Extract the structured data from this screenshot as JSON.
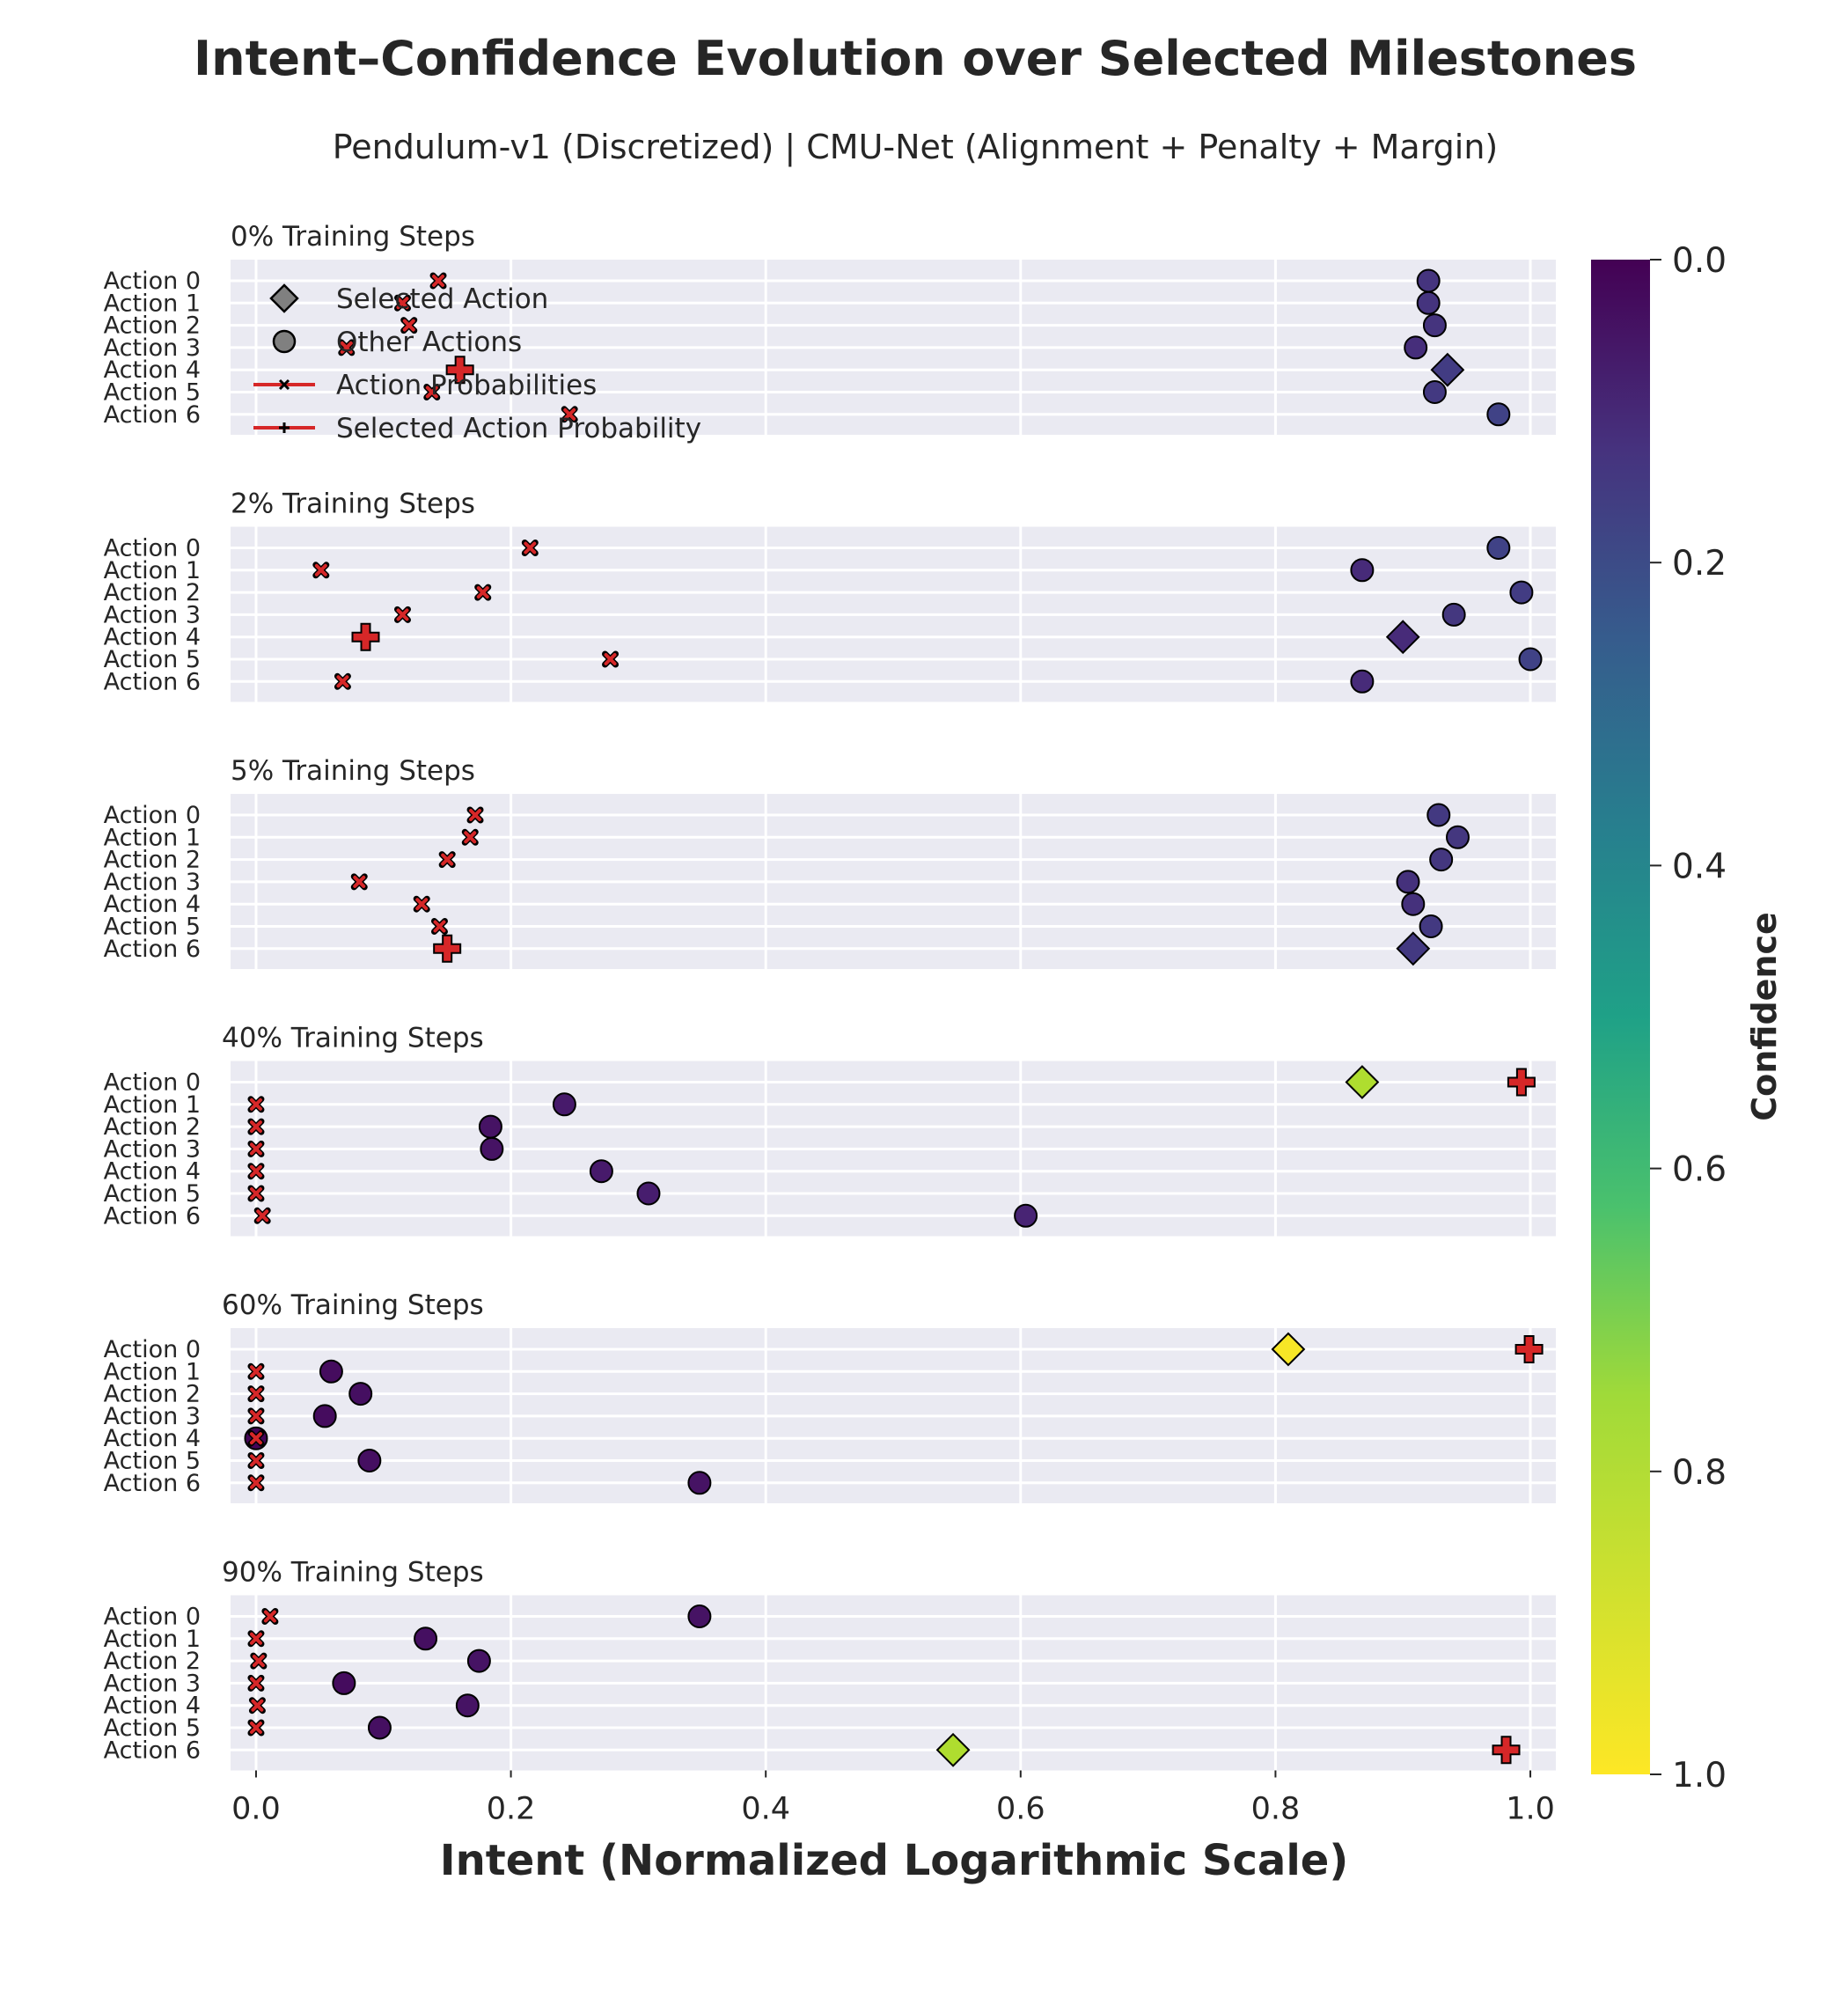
{
  "chart_data": {
    "type": "scatter",
    "title": "Intent–Confidence Evolution over Selected Milestones",
    "subtitle": "Pendulum-v1 (Discretized) | CMU-Net (Alignment + Penalty + Margin)",
    "xlabel": "Intent (Normalized Logarithmic Scale)",
    "xlim": [
      -0.02,
      1.02
    ],
    "xticks": [
      "0.0",
      "0.2",
      "0.4",
      "0.6",
      "0.8",
      "1.0"
    ],
    "xtick_values": [
      0.0,
      0.2,
      0.4,
      0.6,
      0.8,
      1.0
    ],
    "actions": [
      "Action 0",
      "Action 1",
      "Action 2",
      "Action 3",
      "Action 4",
      "Action 5",
      "Action 6"
    ],
    "colorbar": {
      "label": "Confidence",
      "colormap": "viridis (reversed)",
      "range": [
        0.0,
        1.0
      ],
      "ticks": [
        "0.0",
        "0.2",
        "0.4",
        "0.6",
        "0.8",
        "1.0"
      ],
      "tick_values": [
        0.0,
        0.2,
        0.4,
        0.6,
        0.8,
        1.0
      ]
    },
    "legend": {
      "placement": "top-left of first panel",
      "entries": [
        "Selected Action",
        "Other Actions",
        "Action Probabilities",
        "Selected Action Probability"
      ]
    },
    "grid": true,
    "panels": [
      {
        "title": "0% Training Steps",
        "selected": 4,
        "intent": [
          0.92,
          0.92,
          0.925,
          0.91,
          0.935,
          0.925,
          0.975
        ],
        "confidence": [
          0.15,
          0.15,
          0.15,
          0.13,
          0.18,
          0.17,
          0.2
        ],
        "probability": [
          0.143,
          0.115,
          0.12,
          0.071,
          0.16,
          0.138,
          0.246
        ]
      },
      {
        "title": "2% Training Steps",
        "selected": 4,
        "intent": [
          0.975,
          0.868,
          0.993,
          0.94,
          0.9,
          1.0,
          0.868
        ],
        "confidence": [
          0.2,
          0.12,
          0.18,
          0.16,
          0.12,
          0.2,
          0.12
        ],
        "probability": [
          0.215,
          0.051,
          0.178,
          0.115,
          0.086,
          0.278,
          0.068
        ]
      },
      {
        "title": "5% Training Steps",
        "selected": 6,
        "intent": [
          0.928,
          0.943,
          0.93,
          0.904,
          0.908,
          0.922,
          0.908
        ],
        "confidence": [
          0.17,
          0.16,
          0.16,
          0.14,
          0.14,
          0.17,
          0.17
        ],
        "probability": [
          0.172,
          0.168,
          0.15,
          0.081,
          0.13,
          0.144,
          0.15
        ]
      },
      {
        "title": "40% Training Steps",
        "selected": 0,
        "intent": [
          0.868,
          0.242,
          0.184,
          0.185,
          0.271,
          0.308,
          0.604
        ],
        "confidence": [
          0.88,
          0.07,
          0.05,
          0.05,
          0.07,
          0.08,
          0.1
        ],
        "probability": [
          0.993,
          0.0,
          0.0,
          0.0,
          0.0,
          0.0,
          0.005
        ]
      },
      {
        "title": "60% Training Steps",
        "selected": 0,
        "intent": [
          0.81,
          0.059,
          0.082,
          0.054,
          0.0,
          0.089,
          0.348
        ],
        "confidence": [
          0.99,
          0.03,
          0.04,
          0.03,
          0.01,
          0.04,
          0.05
        ],
        "probability": [
          0.999,
          0.0,
          0.0,
          0.0,
          0.0,
          0.0,
          0.0
        ]
      },
      {
        "title": "90% Training Steps",
        "selected": 6,
        "intent": [
          0.348,
          0.133,
          0.175,
          0.069,
          0.166,
          0.097,
          0.547
        ],
        "confidence": [
          0.05,
          0.04,
          0.05,
          0.03,
          0.05,
          0.04,
          0.88
        ],
        "probability": [
          0.011,
          0.0,
          0.002,
          0.0,
          0.001,
          0.0,
          0.981
        ]
      }
    ]
  },
  "colors": {
    "panel_bg": "#eaeaf2",
    "grid": "#ffffff",
    "probability_marker": "#d62728",
    "marker_edge": "#000000",
    "text": "#262626"
  }
}
